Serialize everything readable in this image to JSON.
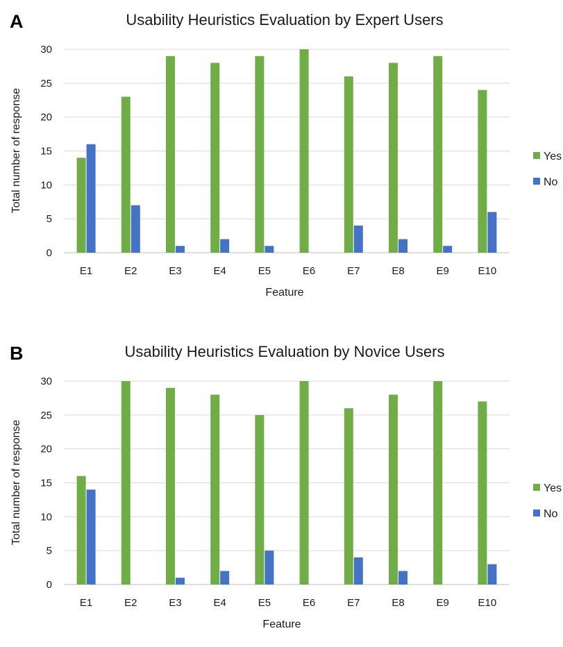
{
  "chart_data": [
    {
      "type": "bar",
      "panel_label": "A",
      "title": "Usability Heuristics Evaluation by Expert Users",
      "xlabel": "Feature",
      "ylabel": "Total number of response",
      "categories": [
        "E1",
        "E2",
        "E3",
        "E4",
        "E5",
        "E6",
        "E7",
        "E8",
        "E9",
        "E10"
      ],
      "series": [
        {
          "name": "Yes",
          "color": "#70AD47",
          "values": [
            14,
            23,
            29,
            28,
            29,
            30,
            26,
            28,
            29,
            24
          ]
        },
        {
          "name": "No",
          "color": "#4472C4",
          "values": [
            16,
            7,
            1,
            2,
            1,
            0,
            4,
            2,
            1,
            6
          ]
        }
      ],
      "yticks": [
        0,
        5,
        10,
        15,
        20,
        25,
        30
      ],
      "ylim": [
        0,
        30
      ],
      "grid": true,
      "legend": "right"
    },
    {
      "type": "bar",
      "panel_label": "B",
      "title": "Usability Heuristics Evaluation by Novice Users",
      "xlabel": "Feature",
      "ylabel": "Total number of response",
      "categories": [
        "E1",
        "E2",
        "E3",
        "E4",
        "E5",
        "E6",
        "E7",
        "E8",
        "E9",
        "E10"
      ],
      "series": [
        {
          "name": "Yes",
          "color": "#70AD47",
          "values": [
            16,
            30,
            29,
            28,
            25,
            30,
            26,
            28,
            30,
            27
          ]
        },
        {
          "name": "No",
          "color": "#4472C4",
          "values": [
            14,
            0,
            1,
            2,
            5,
            0,
            4,
            2,
            0,
            3
          ]
        }
      ],
      "yticks": [
        0,
        5,
        10,
        15,
        20,
        25,
        30
      ],
      "ylim": [
        0,
        30
      ],
      "grid": true,
      "legend": "right"
    }
  ]
}
